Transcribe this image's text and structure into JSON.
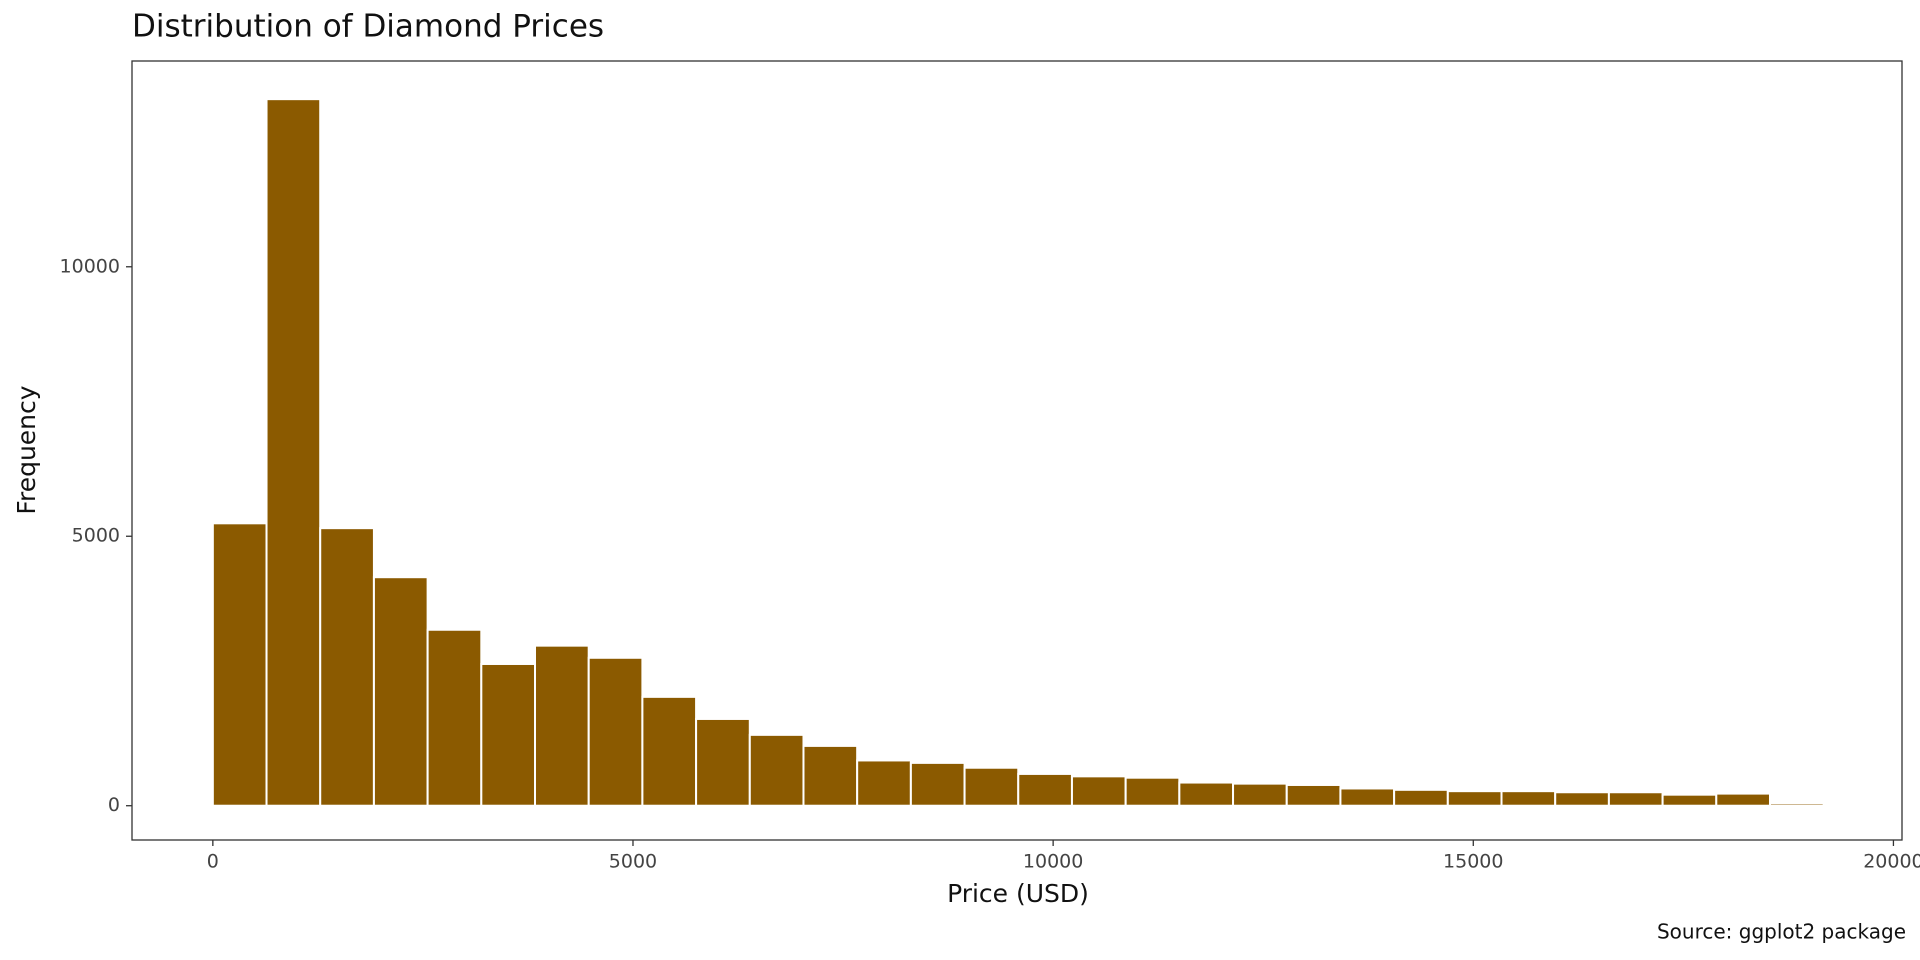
{
  "chart_data": {
    "type": "histogram",
    "title": "Distribution of Diamond Prices",
    "x_label": "Price (USD)",
    "y_label": "Frequency",
    "caption": "Source: ggplot2 package",
    "bins": [
      0,
      639,
      1278,
      1917,
      2556,
      3195,
      3834,
      4473,
      5112,
      5751,
      6390,
      7029,
      7668,
      8307,
      8946,
      9585,
      10224,
      10863,
      11502,
      12141,
      12780,
      13419,
      14058,
      14697,
      15336,
      15975,
      16614,
      17253,
      17892,
      18531,
      19170
    ],
    "values": [
      5240,
      13110,
      5150,
      4240,
      3265,
      2630,
      2970,
      2745,
      2020,
      1610,
      1315,
      1110,
      840,
      795,
      705,
      590,
      545,
      520,
      430,
      410,
      385,
      320,
      295,
      270,
      270,
      250,
      250,
      205,
      225,
      45
    ],
    "color": "#8b5a00",
    "xlim": [
      -962,
      20102
    ],
    "xticks": [
      0,
      5000,
      10000,
      15000,
      20000
    ],
    "ylim": [
      -636,
      13818
    ],
    "yticks": [
      0,
      5000,
      10000
    ],
    "grid": false
  }
}
